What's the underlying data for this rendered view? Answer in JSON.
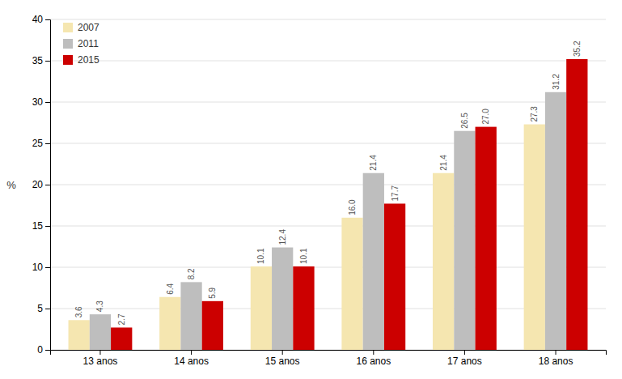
{
  "chart_data": {
    "type": "bar",
    "categories": [
      "13 anos",
      "14 anos",
      "15 anos",
      "16 anos",
      "17 anos",
      "18 anos"
    ],
    "series": [
      {
        "name": "2007",
        "color": "#F5E6B0",
        "values": [
          3.6,
          6.4,
          10.1,
          16.0,
          21.4,
          27.3
        ],
        "value_labels": [
          "3.6",
          "6.4",
          "10.1",
          "16.0",
          "21.4",
          "27.3"
        ]
      },
      {
        "name": "2011",
        "color": "#BEBEBE",
        "values": [
          4.3,
          8.2,
          12.4,
          21.4,
          26.5,
          31.2
        ],
        "value_labels": [
          "4.3",
          "8.2",
          "12.4",
          "21.4",
          "26.5",
          "31.2"
        ]
      },
      {
        "name": "2015",
        "color": "#CC0000",
        "values": [
          2.7,
          5.9,
          10.1,
          17.7,
          27.0,
          35.2
        ],
        "value_labels": [
          "2.7",
          "5.9",
          "10.1",
          "17.7",
          "27.0",
          "35.2"
        ]
      }
    ],
    "y_label": "%",
    "ylim": [
      0,
      40
    ],
    "yticks": [
      0,
      5,
      10,
      15,
      20,
      25,
      30,
      35,
      40
    ],
    "grid": true,
    "legend": "top-left",
    "data_labels": true
  }
}
